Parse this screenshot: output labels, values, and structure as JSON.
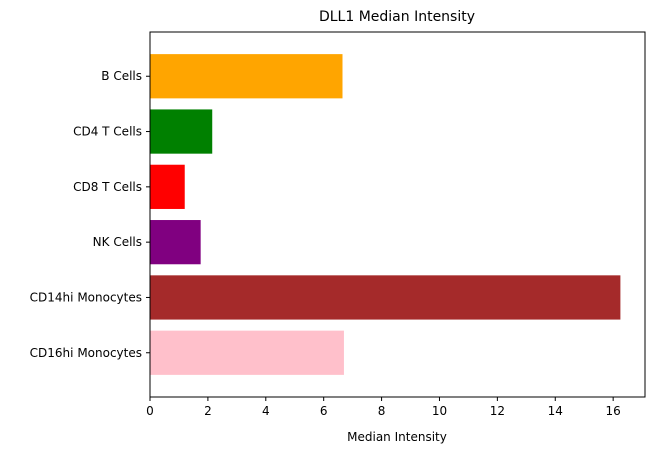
{
  "chart_data": {
    "type": "bar",
    "orientation": "horizontal",
    "title": "DLL1 Median Intensity",
    "xlabel": "Median Intensity",
    "ylabel": "",
    "xlim": [
      0,
      17.1
    ],
    "xticks": [
      0,
      2,
      4,
      6,
      8,
      10,
      12,
      14,
      16
    ],
    "grid": false,
    "categories": [
      "B Cells",
      "CD4 T Cells",
      "CD8 T Cells",
      "NK Cells",
      "CD14hi Monocytes",
      "CD16hi Monocytes"
    ],
    "values": [
      6.65,
      2.15,
      1.2,
      1.75,
      16.25,
      6.7
    ],
    "colors": [
      "#FFA500",
      "#008000",
      "#FF0000",
      "#800080",
      "#A52A2A",
      "#FFC0CB"
    ]
  }
}
